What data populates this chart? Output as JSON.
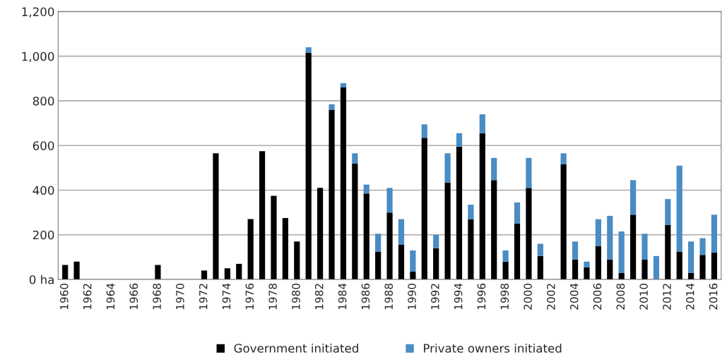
{
  "chart_data": {
    "type": "bar",
    "stacked": true,
    "categories": [
      "1960",
      null,
      "1962",
      null,
      "1964",
      null,
      "1966",
      null,
      "1968",
      null,
      "1970",
      null,
      "1972",
      null,
      "1974",
      null,
      "1976",
      null,
      "1978",
      null,
      "1980",
      null,
      "1982",
      null,
      "1984",
      null,
      "1986",
      null,
      "1988",
      null,
      "1990",
      null,
      "1992",
      null,
      "1994",
      null,
      "1996",
      null,
      "1998",
      null,
      "2000",
      null,
      "2002",
      null,
      "2004",
      null,
      "2006",
      null,
      "2008",
      null,
      "2010",
      null,
      "2012",
      null,
      "2014",
      null,
      "2016"
    ],
    "series": [
      {
        "name": "Government initiated",
        "color": "#000000",
        "values": [
          65,
          80,
          null,
          null,
          null,
          null,
          null,
          null,
          65,
          null,
          null,
          null,
          40,
          565,
          50,
          70,
          270,
          575,
          375,
          275,
          170,
          1015,
          410,
          760,
          860,
          520,
          385,
          125,
          300,
          155,
          35,
          635,
          140,
          435,
          595,
          270,
          655,
          445,
          80,
          250,
          410,
          105,
          null,
          515,
          90,
          55,
          150,
          90,
          30,
          290,
          90,
          null,
          245,
          125,
          30,
          110,
          120
        ]
      },
      {
        "name": "Private owners initiated",
        "color": "#4a8cc4",
        "values": [
          null,
          null,
          null,
          null,
          null,
          null,
          null,
          null,
          null,
          null,
          null,
          null,
          null,
          null,
          null,
          null,
          null,
          null,
          null,
          null,
          null,
          25,
          null,
          25,
          20,
          45,
          40,
          80,
          110,
          115,
          95,
          60,
          60,
          130,
          60,
          65,
          85,
          100,
          50,
          95,
          135,
          55,
          null,
          50,
          80,
          25,
          120,
          195,
          185,
          155,
          115,
          105,
          115,
          385,
          140,
          75,
          170
        ]
      }
    ],
    "ylim": [
      0,
      1200
    ],
    "yticks": [
      {
        "value": 0,
        "label": "0 ha"
      },
      200,
      400,
      600,
      800,
      {
        "value": 1000,
        "label": "1,000"
      },
      {
        "value": 1200,
        "label": "1,200"
      }
    ],
    "grid": "y",
    "legend": "bottom"
  }
}
